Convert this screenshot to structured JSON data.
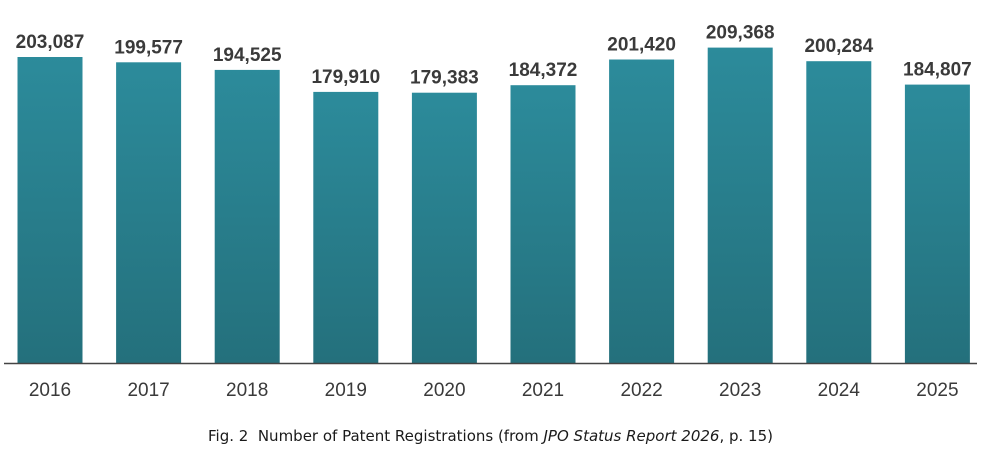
{
  "chart_data": {
    "type": "bar",
    "categories": [
      "2016",
      "2017",
      "2018",
      "2019",
      "2020",
      "2021",
      "2022",
      "2023",
      "2024",
      "2025"
    ],
    "values": [
      203087,
      199577,
      194525,
      179910,
      179383,
      184372,
      201420,
      209368,
      200284,
      184807
    ],
    "value_labels": [
      "203,087",
      "199,577",
      "194,525",
      "179,910",
      "179,383",
      "184,372",
      "201,420",
      "209,368",
      "200,284",
      "184,807"
    ],
    "title": "",
    "xlabel": "",
    "ylabel": "",
    "ylim": [
      0,
      225000
    ],
    "grid": false,
    "legend": "none",
    "bar_color_top": "#2c8b9b",
    "bar_color_bottom": "#24707c",
    "axis_color": "#444444",
    "label_color": "#3a3a3a"
  },
  "caption": {
    "prefix": "Fig. 2  Number of Patent Registrations (from ",
    "source_title": "JPO Status Report 2026",
    "suffix": ", p. 15)"
  }
}
